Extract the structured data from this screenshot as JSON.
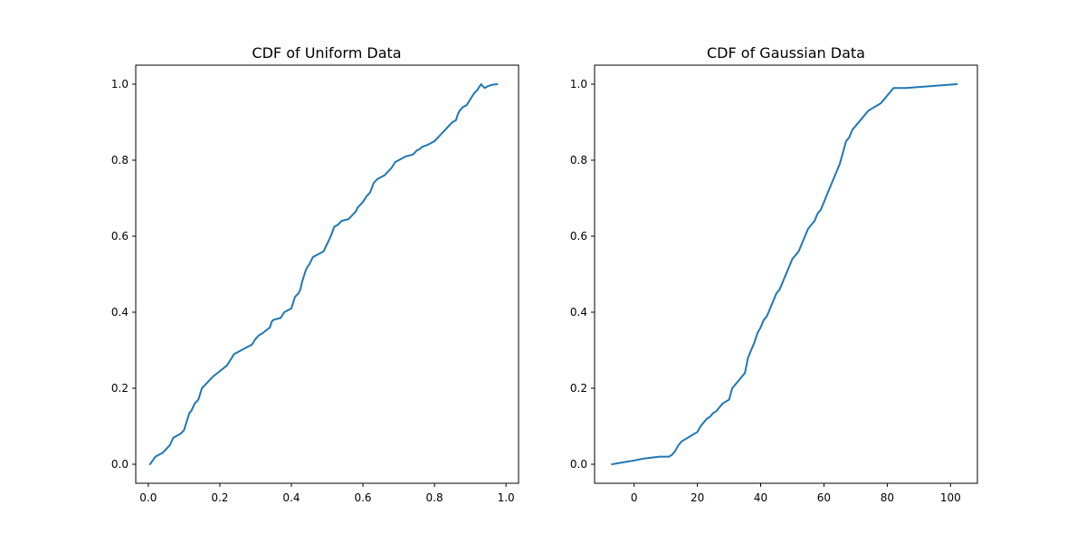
{
  "chart_data": [
    {
      "type": "line",
      "title": "CDF of Uniform Data",
      "xlabel": "",
      "ylabel": "",
      "xlim": [
        -0.035,
        1.035
      ],
      "ylim": [
        -0.05,
        1.05
      ],
      "x_ticks": [
        0.0,
        0.2,
        0.4,
        0.6,
        0.8,
        1.0
      ],
      "x_tick_labels": [
        "0.0",
        "0.2",
        "0.4",
        "0.6",
        "0.8",
        "1.0"
      ],
      "y_ticks": [
        0.0,
        0.2,
        0.4,
        0.6,
        0.8,
        1.0
      ],
      "y_tick_labels": [
        "0.0",
        "0.2",
        "0.4",
        "0.6",
        "0.8",
        "1.0"
      ],
      "grid": false,
      "color": "#1f77b4",
      "series": [
        {
          "x": [
            0.005,
            0.02,
            0.04,
            0.06,
            0.07,
            0.08,
            0.09,
            0.1,
            0.11,
            0.115,
            0.12,
            0.13,
            0.14,
            0.15,
            0.155,
            0.16,
            0.18,
            0.2,
            0.22,
            0.24,
            0.25,
            0.26,
            0.28,
            0.29,
            0.3,
            0.31,
            0.32,
            0.34,
            0.345,
            0.35,
            0.37,
            0.38,
            0.39,
            0.4,
            0.41,
            0.42,
            0.425,
            0.43,
            0.44,
            0.445,
            0.45,
            0.46,
            0.47,
            0.48,
            0.49,
            0.51,
            0.52,
            0.53,
            0.535,
            0.54,
            0.56,
            0.58,
            0.585,
            0.6,
            0.61,
            0.62,
            0.63,
            0.64,
            0.65,
            0.66,
            0.68,
            0.69,
            0.7,
            0.71,
            0.72,
            0.74,
            0.75,
            0.76,
            0.765,
            0.78,
            0.79,
            0.8,
            0.81,
            0.82,
            0.83,
            0.84,
            0.85,
            0.86,
            0.865,
            0.87,
            0.875,
            0.88,
            0.89,
            0.9,
            0.91,
            0.92,
            0.93,
            0.94,
            0.95,
            0.96,
            0.975
          ],
          "y": [
            0.0,
            0.02,
            0.03,
            0.05,
            0.07,
            0.075,
            0.08,
            0.09,
            0.12,
            0.135,
            0.14,
            0.16,
            0.17,
            0.2,
            0.205,
            0.21,
            0.23,
            0.245,
            0.26,
            0.29,
            0.295,
            0.3,
            0.31,
            0.315,
            0.33,
            0.34,
            0.345,
            0.36,
            0.375,
            0.38,
            0.385,
            0.4,
            0.405,
            0.41,
            0.44,
            0.45,
            0.46,
            0.48,
            0.51,
            0.52,
            0.525,
            0.545,
            0.55,
            0.555,
            0.56,
            0.6,
            0.625,
            0.63,
            0.635,
            0.64,
            0.645,
            0.665,
            0.675,
            0.69,
            0.705,
            0.715,
            0.74,
            0.75,
            0.755,
            0.76,
            0.78,
            0.795,
            0.8,
            0.805,
            0.81,
            0.815,
            0.825,
            0.83,
            0.835,
            0.84,
            0.845,
            0.85,
            0.86,
            0.87,
            0.88,
            0.89,
            0.9,
            0.905,
            0.92,
            0.93,
            0.935,
            0.94,
            0.945,
            0.96,
            0.975,
            0.985,
            1.0,
            0.99,
            0.995,
            0.998,
            1.0
          ]
        }
      ]
    },
    {
      "type": "line",
      "title": "CDF of Gaussian Data",
      "xlabel": "",
      "ylabel": "",
      "xlim": [
        -12.5,
        108.5
      ],
      "ylim": [
        -0.05,
        1.05
      ],
      "x_ticks": [
        0,
        20,
        40,
        60,
        80,
        100
      ],
      "x_tick_labels": [
        "0",
        "20",
        "40",
        "60",
        "80",
        "100"
      ],
      "y_ticks": [
        0.0,
        0.2,
        0.4,
        0.6,
        0.8,
        1.0
      ],
      "y_tick_labels": [
        "0.0",
        "0.2",
        "0.4",
        "0.6",
        "0.8",
        "1.0"
      ],
      "grid": false,
      "color": "#1f77b4",
      "series": [
        {
          "x": [
            -7,
            0,
            3,
            5,
            8,
            11,
            12,
            13,
            14,
            15,
            16,
            17,
            18,
            19,
            20,
            21,
            22,
            23,
            24,
            25,
            26,
            27,
            28,
            29,
            30,
            31,
            32,
            33,
            34,
            35,
            36,
            37,
            38,
            39,
            40,
            41,
            42,
            43,
            44,
            45,
            46,
            47,
            48,
            49,
            50,
            51,
            52,
            53,
            54,
            55,
            56,
            57,
            58,
            59,
            60,
            61,
            62,
            63,
            64,
            65,
            66,
            67,
            68,
            69,
            70,
            71,
            72,
            73,
            74,
            75,
            76,
            77,
            78,
            79,
            80,
            81,
            82,
            83,
            84,
            85,
            86,
            102
          ],
          "y": [
            0.0,
            0.01,
            0.015,
            0.017,
            0.02,
            0.02,
            0.025,
            0.035,
            0.05,
            0.06,
            0.065,
            0.07,
            0.075,
            0.08,
            0.085,
            0.1,
            0.11,
            0.12,
            0.125,
            0.135,
            0.14,
            0.15,
            0.16,
            0.165,
            0.17,
            0.2,
            0.21,
            0.22,
            0.23,
            0.24,
            0.28,
            0.3,
            0.32,
            0.345,
            0.36,
            0.38,
            0.39,
            0.41,
            0.43,
            0.45,
            0.46,
            0.48,
            0.5,
            0.52,
            0.54,
            0.55,
            0.56,
            0.58,
            0.6,
            0.62,
            0.63,
            0.64,
            0.66,
            0.67,
            0.69,
            0.71,
            0.73,
            0.75,
            0.77,
            0.79,
            0.82,
            0.85,
            0.86,
            0.88,
            0.89,
            0.9,
            0.91,
            0.92,
            0.93,
            0.935,
            0.94,
            0.945,
            0.95,
            0.96,
            0.97,
            0.98,
            0.99,
            0.99,
            0.99,
            0.99,
            0.99,
            1.0
          ]
        }
      ]
    }
  ]
}
